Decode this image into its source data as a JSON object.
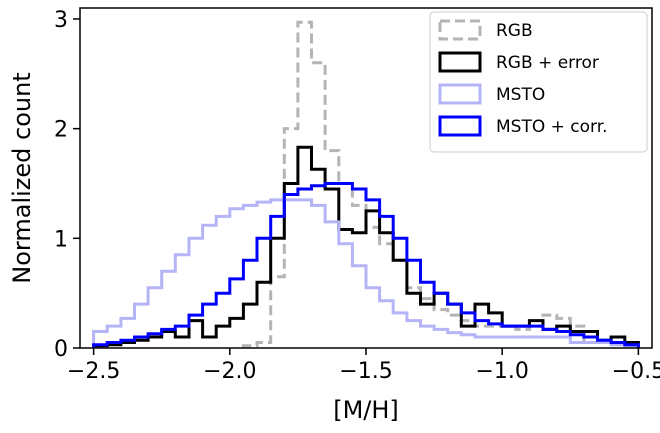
{
  "chart_data": {
    "type": "histogram",
    "title": "",
    "xlabel": "[M/H]",
    "ylabel": "Normalized count",
    "xlim": [
      -2.55,
      -0.45
    ],
    "ylim": [
      0,
      3.1
    ],
    "xticks": [
      -2.5,
      -2.0,
      -1.5,
      -1.0,
      -0.5
    ],
    "xtick_labels": [
      "−2.5",
      "−2.0",
      "−1.5",
      "−1.0",
      "−0.5"
    ],
    "yticks": [
      0,
      1,
      2,
      3
    ],
    "ytick_labels": [
      "0",
      "1",
      "2",
      "3"
    ],
    "grid": false,
    "legend_position": "top-right",
    "series": [
      {
        "name": "RGB",
        "color": "#b4b4b4",
        "style": "dashed",
        "edges": [
          -1.95,
          -1.9,
          -1.85,
          -1.8,
          -1.75,
          -1.7,
          -1.65,
          -1.6,
          -1.55,
          -1.5,
          -1.45,
          -1.4,
          -1.35,
          -1.3,
          -1.25,
          -1.2,
          -1.15,
          -1.1,
          -1.05,
          -1.0,
          -0.95,
          -0.9,
          -0.85,
          -0.8,
          -0.75,
          -0.7
        ],
        "values": [
          0.02,
          0.05,
          0.65,
          2.0,
          2.97,
          2.6,
          1.8,
          1.5,
          1.3,
          1.1,
          0.95,
          0.8,
          0.55,
          0.45,
          0.35,
          0.3,
          0.25,
          0.2,
          0.2,
          0.2,
          0.17,
          0.2,
          0.3,
          0.27,
          0.2
        ]
      },
      {
        "name": "RGB + error",
        "color": "#000000",
        "style": "solid",
        "edges": [
          -2.5,
          -2.45,
          -2.4,
          -2.35,
          -2.3,
          -2.25,
          -2.2,
          -2.15,
          -2.1,
          -2.05,
          -2.0,
          -1.95,
          -1.9,
          -1.85,
          -1.8,
          -1.75,
          -1.7,
          -1.65,
          -1.6,
          -1.55,
          -1.5,
          -1.45,
          -1.4,
          -1.35,
          -1.3,
          -1.25,
          -1.2,
          -1.15,
          -1.1,
          -1.05,
          -1.0,
          -0.95,
          -0.9,
          -0.85,
          -0.8,
          -0.75,
          -0.7,
          -0.65,
          -0.6,
          -0.55,
          -0.5
        ],
        "values": [
          0.02,
          0.03,
          0.05,
          0.07,
          0.1,
          0.15,
          0.1,
          0.25,
          0.1,
          0.2,
          0.27,
          0.4,
          0.6,
          1.0,
          1.5,
          1.83,
          1.63,
          1.45,
          1.08,
          1.05,
          1.25,
          1.05,
          0.8,
          0.5,
          0.4,
          0.5,
          0.4,
          0.2,
          0.4,
          0.32,
          0.2,
          0.2,
          0.25,
          0.17,
          0.2,
          0.15,
          0.15,
          0.07,
          0.1,
          0.05
        ]
      },
      {
        "name": "MSTO",
        "color": "#b4b4f7",
        "style": "solid",
        "edges": [
          -2.5,
          -2.45,
          -2.4,
          -2.35,
          -2.3,
          -2.25,
          -2.2,
          -2.15,
          -2.1,
          -2.05,
          -2.0,
          -1.95,
          -1.9,
          -1.85,
          -1.8,
          -1.75,
          -1.7,
          -1.65,
          -1.6,
          -1.55,
          -1.5,
          -1.45,
          -1.4,
          -1.35,
          -1.3,
          -1.25,
          -1.2,
          -1.15,
          -1.1,
          -1.05,
          -1.0,
          -0.95,
          -0.9,
          -0.85,
          -0.8,
          -0.75,
          -0.7,
          -0.65,
          -0.6,
          -0.55,
          -0.5
        ],
        "values": [
          0.15,
          0.2,
          0.27,
          0.4,
          0.55,
          0.7,
          0.85,
          1.0,
          1.12,
          1.2,
          1.27,
          1.3,
          1.33,
          1.35,
          1.35,
          1.35,
          1.3,
          1.15,
          0.95,
          0.75,
          0.55,
          0.43,
          0.32,
          0.25,
          0.2,
          0.17,
          0.14,
          0.12,
          0.1,
          0.1,
          0.1,
          0.1,
          0.1,
          0.1,
          0.1,
          0.05,
          0.05,
          0.05,
          0.03,
          0.02
        ]
      },
      {
        "name": "MSTO + corr.",
        "color": "#0000ff",
        "style": "solid",
        "edges": [
          -2.5,
          -2.45,
          -2.4,
          -2.35,
          -2.3,
          -2.25,
          -2.2,
          -2.15,
          -2.1,
          -2.05,
          -2.0,
          -1.95,
          -1.9,
          -1.85,
          -1.8,
          -1.75,
          -1.7,
          -1.65,
          -1.6,
          -1.55,
          -1.5,
          -1.45,
          -1.4,
          -1.35,
          -1.3,
          -1.25,
          -1.2,
          -1.15,
          -1.1,
          -1.05,
          -1.0,
          -0.95,
          -0.9,
          -0.85,
          -0.8,
          -0.75,
          -0.7,
          -0.65,
          -0.6,
          -0.55,
          -0.5
        ],
        "values": [
          0.03,
          0.05,
          0.07,
          0.1,
          0.13,
          0.17,
          0.2,
          0.3,
          0.4,
          0.5,
          0.63,
          0.8,
          1.0,
          1.2,
          1.4,
          1.45,
          1.48,
          1.5,
          1.5,
          1.45,
          1.35,
          1.2,
          1.0,
          0.8,
          0.6,
          0.5,
          0.4,
          0.32,
          0.25,
          0.22,
          0.2,
          0.2,
          0.2,
          0.17,
          0.15,
          0.12,
          0.1,
          0.07,
          0.05,
          0.03
        ]
      }
    ]
  }
}
